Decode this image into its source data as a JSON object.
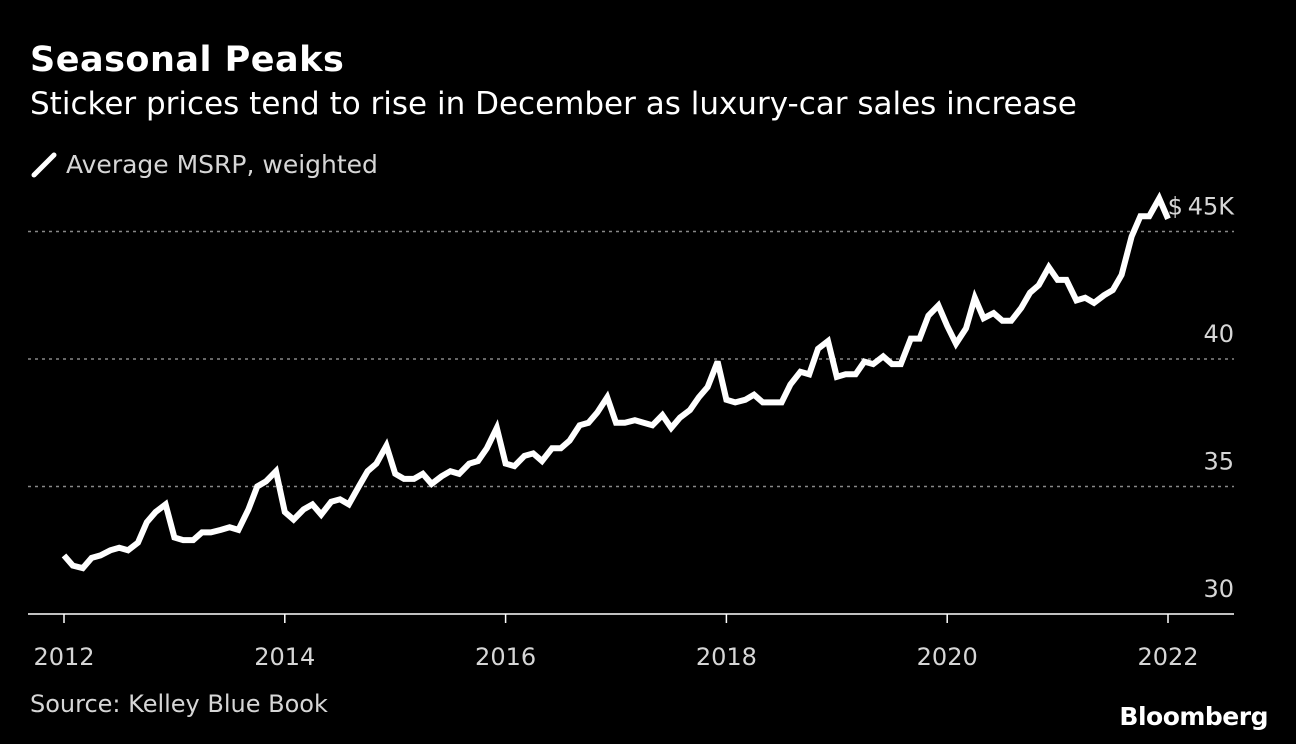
{
  "header": {
    "title": "Seasonal Peaks",
    "subtitle": "Sticker prices tend to rise in December as luxury-car sales increase"
  },
  "legend": {
    "label": "Average MSRP, weighted"
  },
  "footer": {
    "source": "Source: Kelley Blue Book",
    "brand": "Bloomberg"
  },
  "colors": {
    "background": "#000000",
    "line": "#ffffff",
    "grid": "#888888",
    "tick_text": "#d6d6d6"
  },
  "chart_data": {
    "type": "line",
    "title": "Seasonal Peaks",
    "subtitle": "Sticker prices tend to rise in December as luxury-car sales increase",
    "xlabel": "",
    "ylabel": "",
    "ylim": [
      30,
      46
    ],
    "xlim": [
      2012,
      2022
    ],
    "y_ticks": [
      {
        "value": 30,
        "label": "30"
      },
      {
        "value": 35,
        "label": "35"
      },
      {
        "value": 40,
        "label": "40"
      },
      {
        "value": 45,
        "label": "$ 45K"
      }
    ],
    "x_ticks": [
      {
        "value": 2012,
        "label": "2012"
      },
      {
        "value": 2014,
        "label": "2014"
      },
      {
        "value": 2016,
        "label": "2016"
      },
      {
        "value": 2018,
        "label": "2018"
      },
      {
        "value": 2020,
        "label": "2020"
      },
      {
        "value": 2022,
        "label": "2022"
      }
    ],
    "grid": "horizontal dotted",
    "legend_position": "top-left",
    "series": [
      {
        "name": "Average MSRP, weighted",
        "x": [
          2012.0,
          2012.08,
          2012.17,
          2012.25,
          2012.33,
          2012.42,
          2012.5,
          2012.58,
          2012.67,
          2012.75,
          2012.83,
          2012.92,
          2013.0,
          2013.08,
          2013.17,
          2013.25,
          2013.33,
          2013.42,
          2013.5,
          2013.58,
          2013.67,
          2013.75,
          2013.83,
          2013.92,
          2014.0,
          2014.08,
          2014.17,
          2014.25,
          2014.33,
          2014.42,
          2014.5,
          2014.58,
          2014.67,
          2014.75,
          2014.83,
          2014.92,
          2015.0,
          2015.08,
          2015.17,
          2015.25,
          2015.33,
          2015.42,
          2015.5,
          2015.58,
          2015.67,
          2015.75,
          2015.83,
          2015.92,
          2016.0,
          2016.08,
          2016.17,
          2016.25,
          2016.33,
          2016.42,
          2016.5,
          2016.58,
          2016.67,
          2016.75,
          2016.83,
          2016.92,
          2017.0,
          2017.08,
          2017.17,
          2017.25,
          2017.33,
          2017.42,
          2017.5,
          2017.58,
          2017.67,
          2017.75,
          2017.83,
          2017.92,
          2018.0,
          2018.08,
          2018.17,
          2018.25,
          2018.33,
          2018.42,
          2018.5,
          2018.58,
          2018.67,
          2018.75,
          2018.83,
          2018.92,
          2019.0,
          2019.08,
          2019.17,
          2019.25,
          2019.33,
          2019.42,
          2019.5,
          2019.58,
          2019.67,
          2019.75,
          2019.83,
          2019.92,
          2020.0,
          2020.08,
          2020.17,
          2020.25,
          2020.33,
          2020.42,
          2020.5,
          2020.58,
          2020.67,
          2020.75,
          2020.83,
          2020.92,
          2021.0,
          2021.08,
          2021.17,
          2021.25,
          2021.33,
          2021.42,
          2021.5,
          2021.58,
          2021.67,
          2021.75,
          2021.83,
          2021.92,
          2022.0
        ],
        "values": [
          32.3,
          31.9,
          31.8,
          32.2,
          32.3,
          32.5,
          32.6,
          32.5,
          32.8,
          33.6,
          34.0,
          34.3,
          33.0,
          32.9,
          32.9,
          33.2,
          33.2,
          33.3,
          33.4,
          33.3,
          34.1,
          35.0,
          35.2,
          35.6,
          34.0,
          33.7,
          34.1,
          34.3,
          33.9,
          34.4,
          34.5,
          34.3,
          35.0,
          35.6,
          35.9,
          36.6,
          35.5,
          35.3,
          35.3,
          35.5,
          35.1,
          35.4,
          35.6,
          35.5,
          35.9,
          36.0,
          36.5,
          37.3,
          35.9,
          35.8,
          36.2,
          36.3,
          36.0,
          36.5,
          36.5,
          36.8,
          37.4,
          37.5,
          37.9,
          38.5,
          37.5,
          37.5,
          37.6,
          37.5,
          37.4,
          37.8,
          37.3,
          37.7,
          38.0,
          38.5,
          38.9,
          39.9,
          38.4,
          38.3,
          38.4,
          38.6,
          38.3,
          38.3,
          38.3,
          39.0,
          39.5,
          39.4,
          40.4,
          40.7,
          39.3,
          39.4,
          39.4,
          39.9,
          39.8,
          40.1,
          39.8,
          39.8,
          40.8,
          40.8,
          41.7,
          42.1,
          41.3,
          40.6,
          41.2,
          42.4,
          41.6,
          41.8,
          41.5,
          41.5,
          42.0,
          42.6,
          42.9,
          43.6,
          43.1,
          43.1,
          42.3,
          42.4,
          42.2,
          42.5,
          42.7,
          43.3,
          44.8,
          45.6,
          45.6,
          46.3,
          45.5
        ]
      }
    ]
  }
}
